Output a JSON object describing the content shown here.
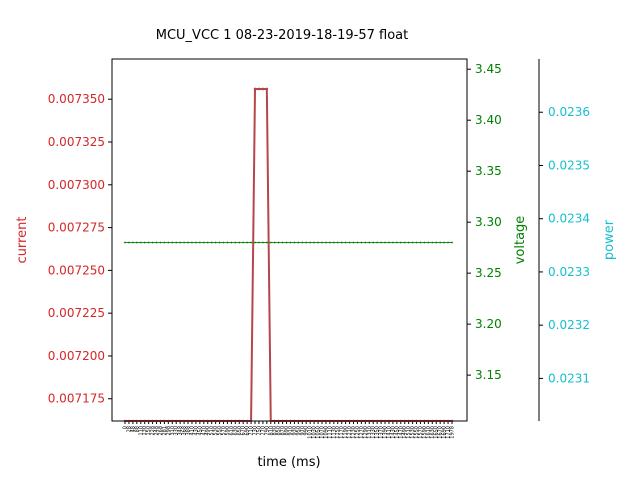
{
  "chart_data": {
    "type": "line",
    "title": "MCU_VCC   1   08-23-2019-18-19-57   float",
    "xlabel": "time (ms)",
    "colors": {
      "current": "#d62728",
      "voltage": "#008000",
      "power": "#17becf",
      "current_line": "#b5474b"
    },
    "axes": {
      "current": {
        "label": "current",
        "ylim": [
          0.007162,
          0.0073735
        ],
        "ticks": [
          "0.007175",
          "0.007200",
          "0.007225",
          "0.007250",
          "0.007275",
          "0.007300",
          "0.007325",
          "0.007350"
        ],
        "tick_values": [
          0.007175,
          0.0072,
          0.007225,
          0.00725,
          0.007275,
          0.0073,
          0.007325,
          0.00735
        ]
      },
      "voltage": {
        "label": "voltage",
        "ylim": [
          3.105,
          3.46
        ],
        "ticks": [
          "3.15",
          "3.20",
          "3.25",
          "3.30",
          "3.35",
          "3.40",
          "3.45"
        ],
        "tick_values": [
          3.15,
          3.2,
          3.25,
          3.3,
          3.35,
          3.4,
          3.45
        ]
      },
      "power": {
        "label": "power",
        "ylim": [
          0.02302,
          0.0237
        ],
        "ticks": [
          "0.0231",
          "0.0232",
          "0.0233",
          "0.0234",
          "0.0235",
          "0.0236"
        ],
        "tick_values": [
          0.0231,
          0.0232,
          0.0233,
          0.0234,
          0.0235,
          0.0236
        ]
      }
    },
    "series": [
      {
        "name": "current",
        "x": [
          0,
          20,
          40,
          60,
          80,
          100,
          120,
          140,
          160,
          180,
          200,
          220,
          240,
          260,
          280,
          300,
          320,
          340,
          360,
          380,
          400,
          420,
          440,
          460,
          480,
          500,
          520,
          540,
          560,
          580,
          600,
          620,
          640,
          660,
          680,
          700,
          720,
          740,
          760,
          780,
          800,
          820,
          840,
          860,
          880,
          900,
          920,
          940,
          960,
          980,
          1000,
          1020,
          1040,
          1060,
          1080,
          1100,
          1120,
          1140,
          1160,
          1180,
          1200,
          1220,
          1240,
          1260,
          1280,
          1300,
          1320,
          1340,
          1360,
          1380,
          1400,
          1420,
          1440,
          1460,
          1480,
          1500,
          1520,
          1540,
          1560,
          1580,
          1600,
          1620,
          1640,
          1660
        ],
        "values": [
          0.007162,
          0.007162,
          0.007162,
          0.007162,
          0.007162,
          0.007162,
          0.007162,
          0.007162,
          0.007162,
          0.007162,
          0.007162,
          0.007162,
          0.007162,
          0.007162,
          0.007162,
          0.007162,
          0.007162,
          0.007162,
          0.007162,
          0.007162,
          0.007162,
          0.007162,
          0.007162,
          0.007162,
          0.007162,
          0.007162,
          0.007162,
          0.007162,
          0.007162,
          0.007162,
          0.007162,
          0.007162,
          0.007162,
          0.007356,
          0.007356,
          0.007356,
          0.007356,
          0.007162,
          0.007162,
          0.007162,
          0.007162,
          0.007162,
          0.007162,
          0.007162,
          0.007162,
          0.007162,
          0.007162,
          0.007162,
          0.007162,
          0.007162,
          0.007162,
          0.007162,
          0.007162,
          0.007162,
          0.007162,
          0.007162,
          0.007162,
          0.007162,
          0.007162,
          0.007162,
          0.007162,
          0.007162,
          0.007162,
          0.007162,
          0.007162,
          0.007162,
          0.007162,
          0.007162,
          0.007162,
          0.007162,
          0.007162,
          0.007162,
          0.007162,
          0.007162,
          0.007162,
          0.007162,
          0.007162,
          0.007162,
          0.007162,
          0.007162,
          0.007162,
          0.007162,
          0.007162,
          0.007162
        ]
      },
      {
        "name": "voltage",
        "x": [
          0,
          20,
          40,
          60,
          80,
          100,
          120,
          140,
          160,
          180,
          200,
          220,
          240,
          260,
          280,
          300,
          320,
          340,
          360,
          380,
          400,
          420,
          440,
          460,
          480,
          500,
          520,
          540,
          560,
          580,
          600,
          620,
          640,
          660,
          680,
          700,
          720,
          740,
          760,
          780,
          800,
          820,
          840,
          860,
          880,
          900,
          920,
          940,
          960,
          980,
          1000,
          1020,
          1040,
          1060,
          1080,
          1100,
          1120,
          1140,
          1160,
          1180,
          1200,
          1220,
          1240,
          1260,
          1280,
          1300,
          1320,
          1340,
          1360,
          1380,
          1400,
          1420,
          1440,
          1460,
          1480,
          1500,
          1520,
          1540,
          1560,
          1580,
          1600,
          1620,
          1640,
          1660
        ],
        "constant": 3.28
      }
    ],
    "xtick_labels": [
      "0",
      "28",
      "48",
      "88",
      "110",
      "130",
      "150",
      "228",
      "248",
      "268",
      "281",
      "298",
      "310",
      "330",
      "348",
      "368",
      "388",
      "410",
      "430",
      "450",
      "470",
      "490",
      "510",
      "530",
      "550",
      "570",
      "590",
      "610",
      "630",
      "650",
      "670",
      "690",
      "710",
      "730",
      "750",
      "770",
      "790",
      "810",
      "830",
      "850",
      "870",
      "890",
      "910",
      "930",
      "950",
      "970",
      "990",
      "1010",
      "1030",
      "1050",
      "1070",
      "1090",
      "1110",
      "1130",
      "1150",
      "1170",
      "1190",
      "1210",
      "1230",
      "1250",
      "1270",
      "1290",
      "1310",
      "1330",
      "1350",
      "1370",
      "1390",
      "1410",
      "1430",
      "1450",
      "1470",
      "1490",
      "1510",
      "1530",
      "1550",
      "1570",
      "1590",
      "1610",
      "1630",
      "1650",
      "1670",
      "1690",
      "1710",
      "1978"
    ]
  }
}
